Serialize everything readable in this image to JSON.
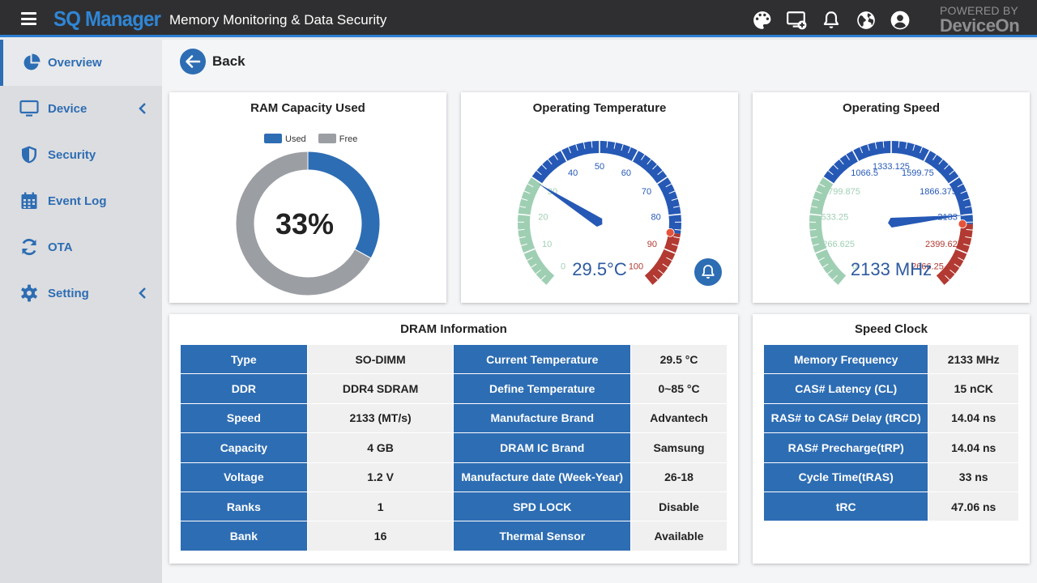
{
  "header": {
    "brand": "SQ Manager",
    "title": "Memory Monitoring & Data Security",
    "powered_by": "POWERED BY",
    "powered_brand": "DeviceOn"
  },
  "sidebar": {
    "items": [
      {
        "label": "Overview",
        "icon": "pie-chart-icon",
        "active": true
      },
      {
        "label": "Device",
        "icon": "monitor-icon",
        "expandable": true
      },
      {
        "label": "Security",
        "icon": "shield-icon"
      },
      {
        "label": "Event Log",
        "icon": "calendar-icon"
      },
      {
        "label": "OTA",
        "icon": "refresh-icon"
      },
      {
        "label": "Setting",
        "icon": "gear-icon",
        "expandable": true
      }
    ]
  },
  "nav": {
    "back_label": "Back"
  },
  "colors": {
    "primary": "#2d6db3",
    "used": "#2d6db3",
    "free": "#9b9ea3",
    "gauge_blue": "#2659b5",
    "gauge_green": "#9fcfb3",
    "gauge_red": "#b23a32"
  },
  "ram": {
    "title": "RAM Capacity Used",
    "legend_used": "Used",
    "legend_free": "Free",
    "used_percent": 33,
    "display": "33%"
  },
  "temperature": {
    "title": "Operating Temperature",
    "value": 29.5,
    "display": "29.5°C",
    "min": 0,
    "max": 100,
    "green_max": 30,
    "red_min": 85,
    "ticks": [
      "0",
      "10",
      "20",
      "30",
      "40",
      "50",
      "60",
      "70",
      "80",
      "90",
      "100"
    ]
  },
  "speed": {
    "title": "Operating Speed",
    "value": 2133,
    "display": "2133 MHz",
    "min": 0,
    "max": 2666.25,
    "green_max": 799.875,
    "red_min": 2199.6,
    "ticks": [
      "0",
      "266.625",
      "533.25",
      "799.875",
      "1066.5",
      "1333.125",
      "1599.75",
      "1866.375",
      "2133",
      "2399.625",
      "2666.25"
    ]
  },
  "dram": {
    "title": "DRAM Information",
    "rows": [
      {
        "k1": "Type",
        "v1": "SO-DIMM",
        "k2": "Current Temperature",
        "v2": "29.5 °C"
      },
      {
        "k1": "DDR",
        "v1": "DDR4 SDRAM",
        "k2": "Define Temperature",
        "v2": "0~85 °C"
      },
      {
        "k1": "Speed",
        "v1": "2133 (MT/s)",
        "k2": "Manufacture Brand",
        "v2": "Advantech"
      },
      {
        "k1": "Capacity",
        "v1": "4 GB",
        "k2": "DRAM IC Brand",
        "v2": "Samsung"
      },
      {
        "k1": "Voltage",
        "v1": "1.2 V",
        "k2": "Manufacture date (Week-Year)",
        "v2": "26-18"
      },
      {
        "k1": "Ranks",
        "v1": "1",
        "k2": "SPD LOCK",
        "v2": "Disable"
      },
      {
        "k1": "Bank",
        "v1": "16",
        "k2": "Thermal Sensor",
        "v2": "Available"
      }
    ]
  },
  "clock": {
    "title": "Speed Clock",
    "rows": [
      {
        "k": "Memory Frequency",
        "v": "2133 MHz"
      },
      {
        "k": "CAS# Latency (CL)",
        "v": "15 nCK"
      },
      {
        "k": "RAS# to CAS# Delay (tRCD)",
        "v": "14.04 ns"
      },
      {
        "k": "RAS# Precharge(tRP)",
        "v": "14.04 ns"
      },
      {
        "k": "Cycle Time(tRAS)",
        "v": "33 ns"
      },
      {
        "k": "tRC",
        "v": "47.06 ns"
      }
    ]
  }
}
